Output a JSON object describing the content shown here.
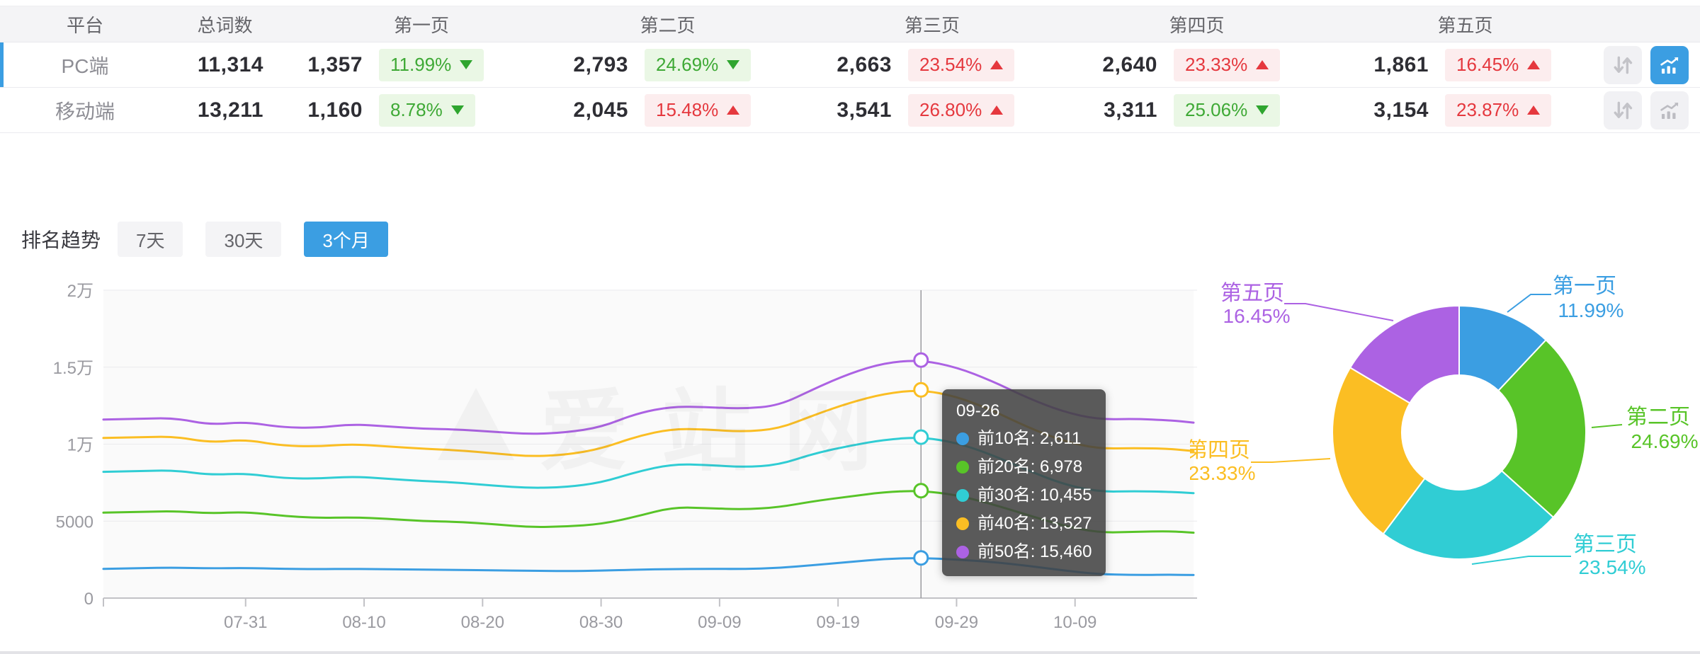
{
  "colors": {
    "accent_blue": "#3B9EE2",
    "green_text": "#3EA935",
    "green_bg": "#EAF7E5",
    "red_text": "#E5383E",
    "red_bg": "#FCEDEE"
  },
  "table": {
    "columns": [
      "平台",
      "总词数",
      "第一页",
      "第二页",
      "第三页",
      "第四页",
      "第五页"
    ],
    "rows": [
      {
        "platform": "PC端",
        "total": "11,314",
        "selected": true,
        "pages": [
          {
            "count": "1,357",
            "pct": "11.99%",
            "dir": "down",
            "tone": "green"
          },
          {
            "count": "2,793",
            "pct": "24.69%",
            "dir": "down",
            "tone": "green"
          },
          {
            "count": "2,663",
            "pct": "23.54%",
            "dir": "up",
            "tone": "red"
          },
          {
            "count": "2,640",
            "pct": "23.33%",
            "dir": "up",
            "tone": "red"
          },
          {
            "count": "1,861",
            "pct": "16.45%",
            "dir": "up",
            "tone": "red"
          }
        ]
      },
      {
        "platform": "移动端",
        "total": "13,211",
        "selected": false,
        "pages": [
          {
            "count": "1,160",
            "pct": "8.78%",
            "dir": "down",
            "tone": "green"
          },
          {
            "count": "2,045",
            "pct": "15.48%",
            "dir": "up",
            "tone": "red"
          },
          {
            "count": "3,541",
            "pct": "26.80%",
            "dir": "up",
            "tone": "red"
          },
          {
            "count": "3,311",
            "pct": "25.06%",
            "dir": "down",
            "tone": "green"
          },
          {
            "count": "3,154",
            "pct": "23.87%",
            "dir": "up",
            "tone": "red"
          }
        ]
      }
    ],
    "icons": {
      "sort": "sort-arrows-icon",
      "chart": "trend-chart-icon"
    }
  },
  "trend": {
    "label": "排名趋势",
    "tabs": [
      "7天",
      "30天",
      "3个月"
    ],
    "active_tab": "3个月"
  },
  "watermark": "爱站网",
  "chart_data": [
    {
      "type": "line",
      "title": "排名趋势 3个月",
      "grid": true,
      "legend_position": "none",
      "ylim": [
        0,
        20000
      ],
      "y_tick_values": [
        0,
        5000,
        10000,
        15000,
        20000
      ],
      "y_tick_labels": [
        "0",
        "5000",
        "1万",
        "1.5万",
        "2万"
      ],
      "x_tick_labels": [
        "07-31",
        "08-10",
        "08-20",
        "08-30",
        "09-09",
        "09-19",
        "09-29",
        "10-09"
      ],
      "x_tick_days": [
        12,
        22,
        32,
        42,
        52,
        62,
        72,
        82
      ],
      "total_days": 92,
      "x_days": [
        0,
        3,
        6,
        9,
        12,
        15,
        18,
        21,
        24,
        27,
        30,
        33,
        36,
        39,
        42,
        45,
        48,
        51,
        54,
        57,
        60,
        63,
        66,
        69,
        72,
        75,
        78,
        81,
        84,
        87,
        90,
        92
      ],
      "series": [
        {
          "name": "前10名",
          "color": "#3B9EE2",
          "values": [
            1900,
            1950,
            1980,
            1930,
            1960,
            1900,
            1880,
            1900,
            1870,
            1850,
            1830,
            1800,
            1780,
            1750,
            1780,
            1850,
            1880,
            1900,
            1890,
            1950,
            2150,
            2350,
            2550,
            2611,
            2500,
            2350,
            2100,
            1800,
            1550,
            1500,
            1520,
            1500
          ]
        },
        {
          "name": "前20名",
          "color": "#58C428",
          "values": [
            5550,
            5600,
            5650,
            5500,
            5600,
            5350,
            5200,
            5250,
            5150,
            5000,
            4950,
            4800,
            4600,
            4650,
            4800,
            5300,
            5900,
            5850,
            5750,
            5900,
            6300,
            6600,
            6900,
            6978,
            6700,
            6100,
            5400,
            4700,
            4250,
            4300,
            4350,
            4250
          ]
        },
        {
          "name": "前30名",
          "color": "#30CDD4",
          "values": [
            8200,
            8250,
            8300,
            8000,
            8100,
            7800,
            7750,
            7900,
            7750,
            7600,
            7500,
            7300,
            7150,
            7200,
            7500,
            8200,
            8700,
            8650,
            8500,
            8650,
            9400,
            9900,
            10300,
            10455,
            10100,
            9300,
            8300,
            7400,
            6900,
            6950,
            6900,
            6820
          ]
        },
        {
          "name": "前40名",
          "color": "#FBBE23",
          "values": [
            10400,
            10450,
            10500,
            10100,
            10300,
            9900,
            9850,
            10000,
            9850,
            9700,
            9600,
            9400,
            9200,
            9300,
            9700,
            10500,
            11000,
            10950,
            10800,
            11000,
            11900,
            12700,
            13300,
            13527,
            13100,
            12200,
            11100,
            10200,
            9700,
            9750,
            9700,
            9550
          ]
        },
        {
          "name": "前50名",
          "color": "#AC62E3",
          "values": [
            11600,
            11650,
            11700,
            11250,
            11450,
            11100,
            11050,
            11300,
            11150,
            11000,
            10950,
            10800,
            10650,
            10750,
            11100,
            12000,
            12450,
            12400,
            12300,
            12500,
            13600,
            14600,
            15300,
            15460,
            15000,
            14100,
            13000,
            12100,
            11600,
            11650,
            11550,
            11400
          ]
        }
      ],
      "tooltip": {
        "date": "09-26",
        "crosshair_day": 69,
        "items": [
          {
            "label": "前10名",
            "value": "2,611",
            "color": "#3B9EE2"
          },
          {
            "label": "前20名",
            "value": "6,978",
            "color": "#58C428"
          },
          {
            "label": "前30名",
            "value": "10,455",
            "color": "#30CDD4"
          },
          {
            "label": "前40名",
            "value": "13,527",
            "color": "#FBBE23"
          },
          {
            "label": "前50名",
            "value": "15,460",
            "color": "#AC62E3"
          }
        ]
      }
    },
    {
      "type": "pie",
      "donut": true,
      "slices": [
        {
          "label": "第一页",
          "pct": 11.99,
          "color": "#3B9EE2"
        },
        {
          "label": "第二页",
          "pct": 24.69,
          "color": "#58C428"
        },
        {
          "label": "第三页",
          "pct": 23.54,
          "color": "#30CDD4"
        },
        {
          "label": "第四页",
          "pct": 23.33,
          "color": "#FBBE23"
        },
        {
          "label": "第五页",
          "pct": 16.45,
          "color": "#AC62E3"
        }
      ]
    }
  ]
}
